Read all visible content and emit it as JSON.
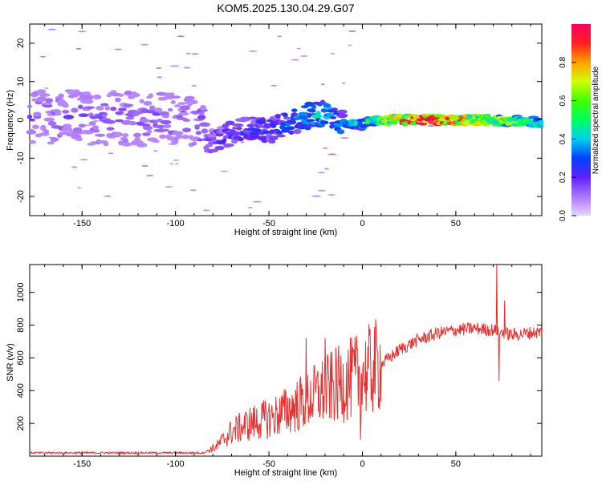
{
  "title": "KOM5.2025.130.04.29.G07",
  "colorbar": {
    "label": "Normalized spectral amplitude",
    "ticks": [
      "0.0",
      "0.2",
      "0.4",
      "0.6",
      "0.8"
    ]
  },
  "chart_data": [
    {
      "type": "heatmap",
      "title": "KOM5.2025.130.04.29.G07",
      "xlabel": "Height of straight line (km)",
      "ylabel": "Frequency (Hz)",
      "xlim": [
        -178,
        96
      ],
      "ylim": [
        -25,
        25
      ],
      "xticks": [
        -150,
        -100,
        -50,
        0,
        50
      ],
      "yticks": [
        -20,
        -10,
        0,
        10,
        20
      ],
      "colorbar_label": "Normalized spectral amplitude",
      "colorbar_range": [
        0,
        1
      ],
      "ridge": {
        "description_points": [
          {
            "x": -178,
            "y": 1,
            "amp": 0.15
          },
          {
            "x": -90,
            "y": 0,
            "amp": 0.15
          },
          {
            "x": -82,
            "y": -6,
            "amp": 0.2
          },
          {
            "x": -60,
            "y": -2,
            "amp": 0.25
          },
          {
            "x": -50,
            "y": -3,
            "amp": 0.25
          },
          {
            "x": -40,
            "y": -1,
            "amp": 0.3
          },
          {
            "x": -30,
            "y": 1,
            "amp": 0.35
          },
          {
            "x": -20,
            "y": 1.5,
            "amp": 0.4
          },
          {
            "x": -10,
            "y": -1,
            "amp": 0.35
          },
          {
            "x": 0,
            "y": -1,
            "amp": 0.4
          },
          {
            "x": 10,
            "y": 0,
            "amp": 0.6
          },
          {
            "x": 30,
            "y": 0,
            "amp": 1.0
          },
          {
            "x": 60,
            "y": 0,
            "amp": 0.7
          },
          {
            "x": 96,
            "y": -0.5,
            "amp": 0.5
          }
        ]
      }
    },
    {
      "type": "line",
      "xlabel": "Height of straight line (km)",
      "ylabel": "SNR (v/v)",
      "xlim": [
        -178,
        96
      ],
      "ylim": [
        0,
        1170
      ],
      "xticks": [
        -150,
        -100,
        -50,
        0,
        50
      ],
      "yticks": [
        200,
        400,
        600,
        800,
        1000
      ],
      "color": "#e83030",
      "envelope": [
        {
          "x": -178,
          "y": 20
        },
        {
          "x": -85,
          "y": 20
        },
        {
          "x": -78,
          "y": 60
        },
        {
          "x": -70,
          "y": 150
        },
        {
          "x": -60,
          "y": 200
        },
        {
          "x": -50,
          "y": 230
        },
        {
          "x": -40,
          "y": 280
        },
        {
          "x": -30,
          "y": 340
        },
        {
          "x": -20,
          "y": 400
        },
        {
          "x": -10,
          "y": 450
        },
        {
          "x": 0,
          "y": 500
        },
        {
          "x": 10,
          "y": 560
        },
        {
          "x": 20,
          "y": 650
        },
        {
          "x": 30,
          "y": 710
        },
        {
          "x": 40,
          "y": 750
        },
        {
          "x": 50,
          "y": 770
        },
        {
          "x": 60,
          "y": 780
        },
        {
          "x": 70,
          "y": 770
        },
        {
          "x": 80,
          "y": 740
        },
        {
          "x": 96,
          "y": 760
        }
      ],
      "spikes": [
        {
          "x": -30,
          "y": 720
        },
        {
          "x": -20,
          "y": 720
        },
        {
          "x": -1,
          "y": 100
        },
        {
          "x": 72,
          "y": 1170
        },
        {
          "x": 73,
          "y": 460
        },
        {
          "x": 76,
          "y": 950
        }
      ]
    }
  ]
}
